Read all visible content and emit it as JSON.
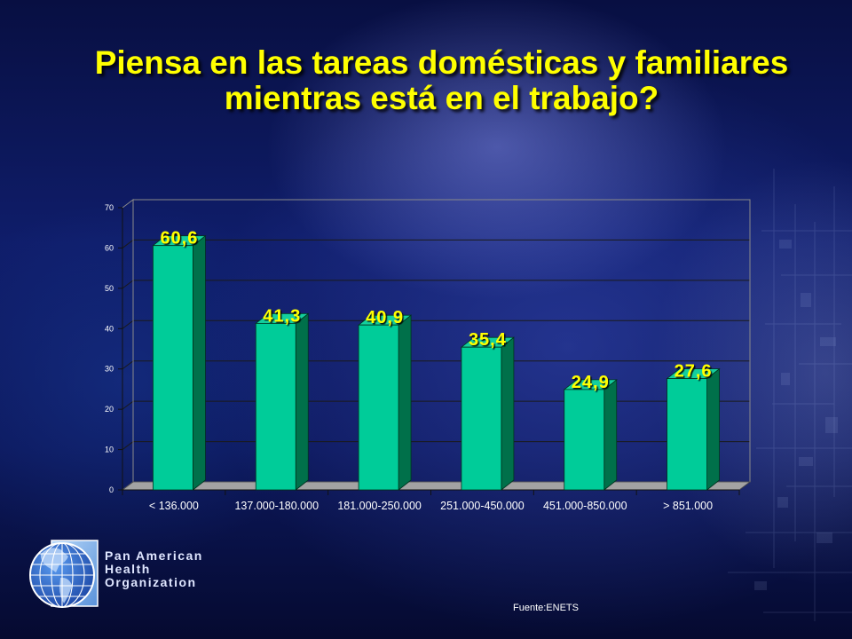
{
  "slide": {
    "title_line1": "Piensa en las tareas domésticas y familiares",
    "title_line2": "mientras está en el trabajo?",
    "title_color": "#FFFF00",
    "source": "Fuente:ENETS"
  },
  "logo": {
    "icon": "globe-icon",
    "line1": "Pan American",
    "line2": "Health",
    "line3": "Organization"
  },
  "chart_data": {
    "type": "bar",
    "style": "3d-column",
    "categories": [
      "< 136.000",
      "137.000-180.000",
      "181.000-250.000",
      "251.000-450.000",
      "451.000-850.000",
      "> 851.000"
    ],
    "values": [
      60.6,
      41.3,
      40.9,
      35.4,
      24.9,
      27.6
    ],
    "data_labels": [
      "60,6",
      "41,3",
      "40,9",
      "35,4",
      "24,9",
      "27,6"
    ],
    "ylim": [
      0,
      70
    ],
    "yticks": [
      0,
      10,
      20,
      30,
      40,
      50,
      60,
      70
    ],
    "grid": true,
    "legend": "none",
    "colors": {
      "bar_front": "#00CC99",
      "bar_side": "#00704A",
      "bar_top": "#13CF9E",
      "data_label": "#FFFF00",
      "floor": "#A3A3A3"
    }
  }
}
